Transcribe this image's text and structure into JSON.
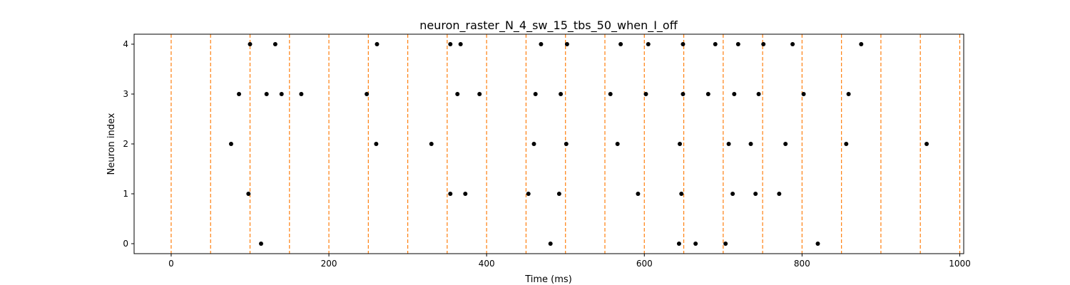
{
  "chart_data": {
    "type": "scatter",
    "title": "neuron_raster_N_4_sw_15_tbs_50_when_I_off",
    "xlabel": "Time (ms)",
    "ylabel": "Neuron index",
    "xlim": [
      -47,
      1005
    ],
    "ylim": [
      -0.2,
      4.2
    ],
    "xticks": [
      0,
      200,
      400,
      600,
      800,
      1000
    ],
    "yticks": [
      0,
      1,
      2,
      3,
      4
    ],
    "grid": false,
    "marker_color": "#000000",
    "vline_color": "#ff7f0e",
    "vlines": [
      0,
      50,
      100,
      150,
      200,
      250,
      300,
      350,
      400,
      450,
      500,
      550,
      600,
      650,
      700,
      750,
      800,
      850,
      900,
      950,
      1000
    ],
    "series": [
      {
        "neuron": 0,
        "x": [
          114,
          481,
          644,
          665,
          703,
          820
        ]
      },
      {
        "neuron": 1,
        "x": [
          98,
          354,
          373,
          453,
          492,
          592,
          647,
          712,
          741,
          771
        ]
      },
      {
        "neuron": 2,
        "x": [
          76,
          260,
          330,
          460,
          501,
          566,
          645,
          707,
          735,
          779,
          856,
          958
        ]
      },
      {
        "neuron": 3,
        "x": [
          86,
          121,
          140,
          165,
          248,
          363,
          391,
          462,
          494,
          557,
          602,
          649,
          681,
          714,
          745,
          802,
          859
        ]
      },
      {
        "neuron": 4,
        "x": [
          100,
          132,
          261,
          354,
          367,
          469,
          502,
          570,
          605,
          649,
          690,
          719,
          751,
          788,
          875
        ]
      }
    ]
  }
}
